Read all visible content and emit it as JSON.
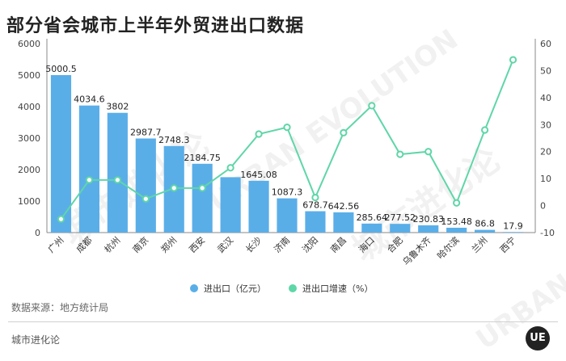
{
  "title": "部分省会城市上半年外贸进出口数据",
  "source": "数据来源：地方统计局",
  "footer": "城市进化论",
  "logo_text": "UE",
  "watermark": {
    "cn": "城市进化论",
    "en": "URBAN EVOLUTION"
  },
  "chart_data": {
    "type": "bar",
    "categories": [
      "广州",
      "成都",
      "杭州",
      "南京",
      "郑州",
      "西安",
      "武汉",
      "长沙",
      "济南",
      "沈阳",
      "南昌",
      "海口",
      "合肥",
      "乌鲁木齐",
      "哈尔滨",
      "兰州",
      "西宁"
    ],
    "series": [
      {
        "name": "进出口（亿元）",
        "type": "bar",
        "axis": "left",
        "color": "#5aaee8",
        "values": [
          5000.5,
          4034.6,
          3802,
          2987.7,
          2748.3,
          2184.75,
          1759,
          1645.08,
          1087.3,
          678.7,
          642.56,
          285.64,
          277.52,
          230.83,
          153.48,
          86.8,
          17.9
        ],
        "labels": [
          "5000.5",
          "4034.6",
          "3802",
          "2987.7",
          "2748.3",
          "2184.75",
          "",
          "1645.08",
          "1087.3",
          "678.7",
          "642.56",
          "285.64",
          "277.52",
          "230.83",
          "153.48",
          "86.8",
          "17.9"
        ]
      },
      {
        "name": "进出口增速（%）",
        "type": "line",
        "axis": "right",
        "color": "#5fd6a8",
        "values": [
          -5,
          9.5,
          9.5,
          2.5,
          6.5,
          6.5,
          14,
          26.5,
          29,
          3,
          27,
          37,
          19,
          20,
          1,
          28,
          54
        ]
      }
    ],
    "left_axis": {
      "min": 0,
      "max": 6000,
      "ticks": [
        0,
        1000,
        2000,
        3000,
        4000,
        5000,
        6000
      ]
    },
    "right_axis": {
      "min": -10,
      "max": 60,
      "ticks": [
        -10,
        0,
        10,
        20,
        30,
        40,
        50,
        60
      ]
    },
    "legend": "bottom-center"
  }
}
